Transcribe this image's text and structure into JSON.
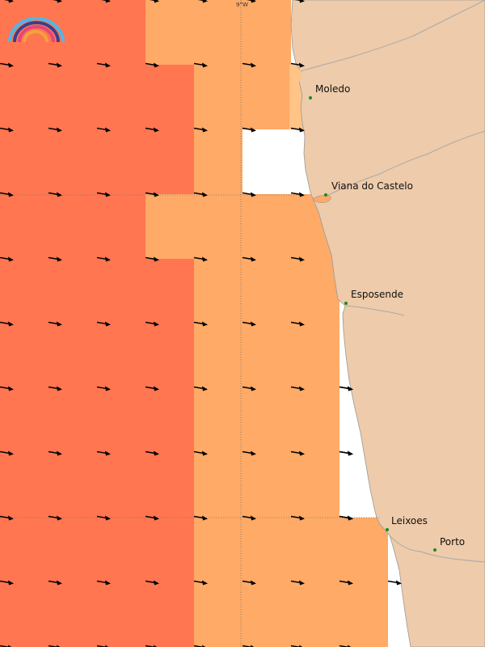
{
  "map": {
    "colors": {
      "zone_high": "#FF7650",
      "zone_mid": "#FFAA66",
      "zone_low": "#FFC486",
      "land": "#EECBAA",
      "coast_line": "#999999",
      "river": "#A9A9A9",
      "grid_line": "#777777",
      "arrow": "#000000",
      "place_marker": "#1E8A1E"
    },
    "meridian_label": "9°W",
    "places": [
      {
        "id": "moledo",
        "name": "Moledo"
      },
      {
        "id": "viana",
        "name": "Viana do Castelo"
      },
      {
        "id": "esposende",
        "name": "Esposende"
      },
      {
        "id": "leixoes",
        "name": "Leixoes"
      },
      {
        "id": "porto",
        "name": "Porto"
      }
    ],
    "logo": {
      "name": "rainbow-logo-icon",
      "colors": [
        "#4FB7E8",
        "#3A3F8F",
        "#E6457A",
        "#F2A33A"
      ]
    }
  }
}
